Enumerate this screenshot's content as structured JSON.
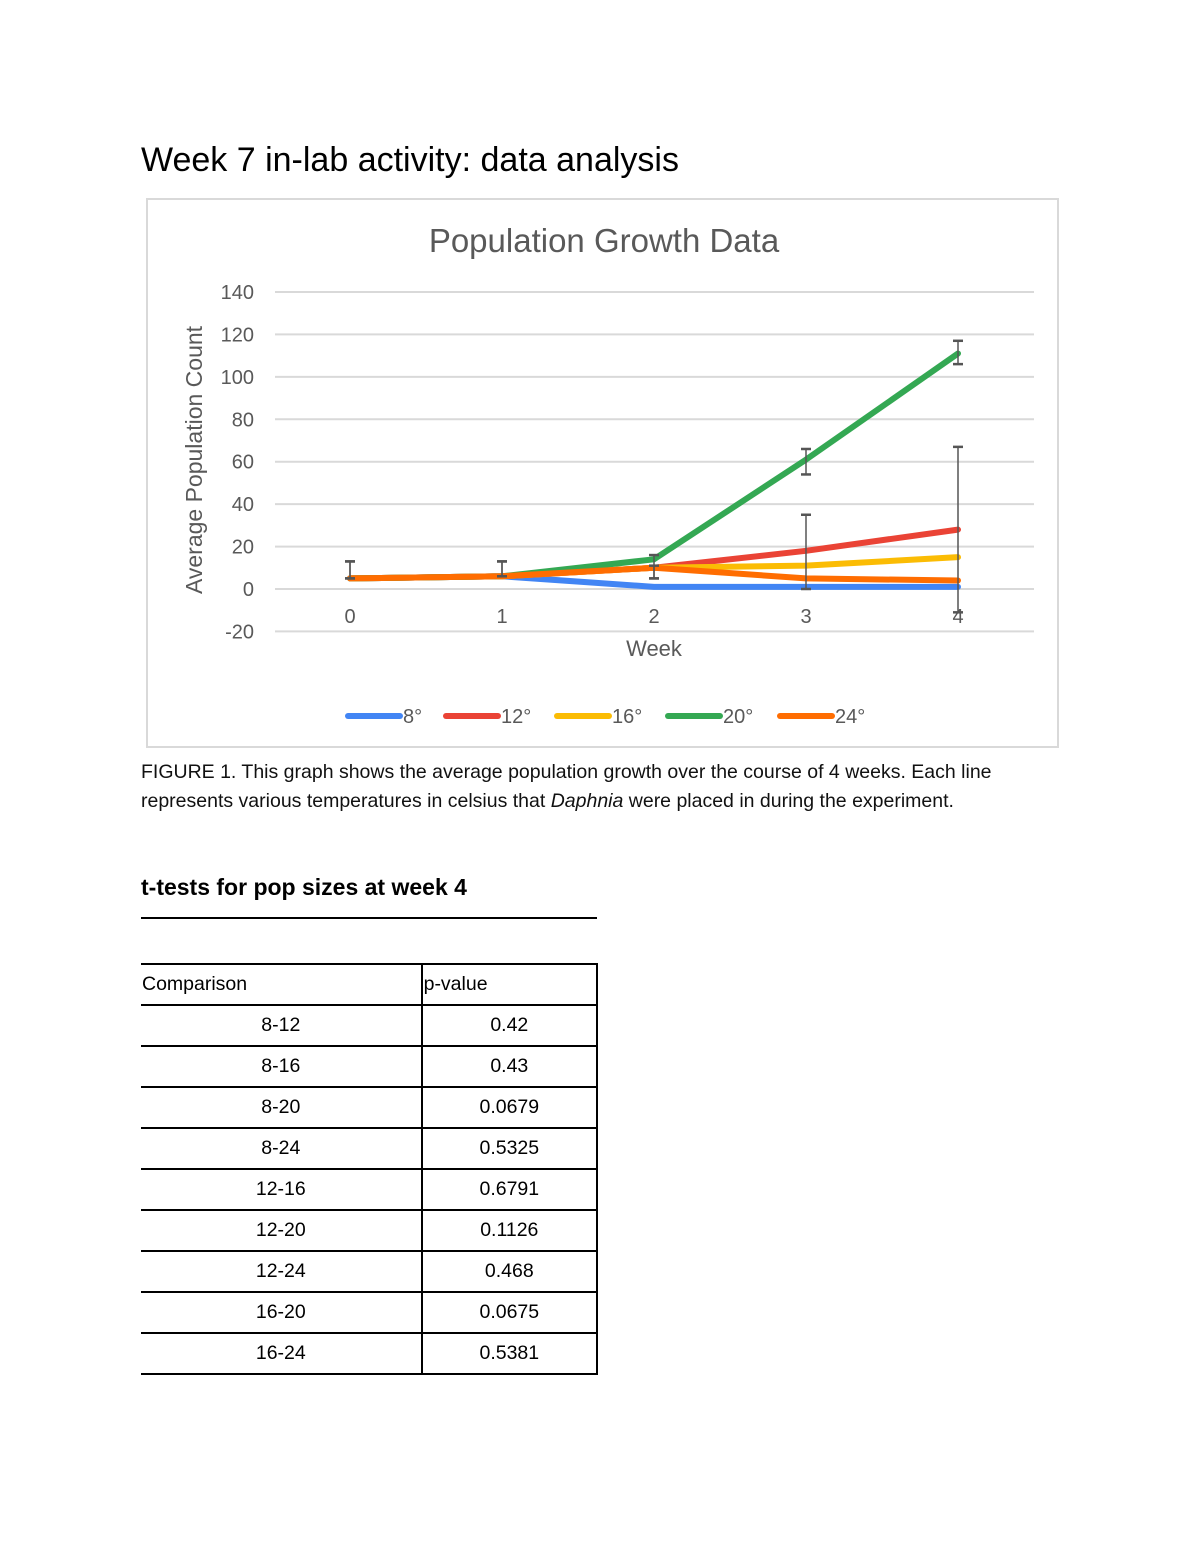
{
  "title": "Week 7 in-lab activity: data analysis",
  "chart_data": {
    "type": "line",
    "title": "Population Growth Data",
    "xlabel": "Week",
    "ylabel": "Average Population Count",
    "x": [
      0,
      1,
      2,
      3,
      4
    ],
    "ylim": [
      -20,
      140
    ],
    "yticks": [
      -20,
      0,
      20,
      40,
      60,
      80,
      100,
      120,
      140
    ],
    "grid": true,
    "legend": "bottom",
    "series": [
      {
        "name": "8°",
        "color": "#4285f4",
        "values": [
          5,
          6,
          1,
          1,
          1
        ]
      },
      {
        "name": "12°",
        "color": "#ea4335",
        "values": [
          5,
          6,
          10,
          18,
          28
        ]
      },
      {
        "name": "16°",
        "color": "#fbbc04",
        "values": [
          5,
          6,
          10,
          11,
          15
        ]
      },
      {
        "name": "20°",
        "color": "#34a853",
        "values": [
          5,
          6,
          14,
          61,
          111
        ],
        "error": [
          [
            5,
            13
          ],
          [
            6,
            13
          ],
          [
            5,
            16
          ],
          [
            54,
            66
          ],
          [
            106,
            117
          ]
        ]
      },
      {
        "name": "24°",
        "color": "#ff6d01",
        "values": [
          5,
          6,
          10,
          5,
          4
        ],
        "error": [
          [
            5,
            13
          ],
          [
            6,
            13
          ],
          [
            5,
            11
          ],
          [
            0,
            35
          ],
          [
            -11,
            67
          ]
        ]
      }
    ]
  },
  "caption": {
    "before": "FIGURE 1. This graph shows the average population growth over the course of 4 weeks. Each line represents various temperatures in celsius that ",
    "italic": "Daphnia",
    "after": " were placed in during the experiment."
  },
  "ttests": {
    "title": "t-tests for pop sizes at week 4",
    "headers": [
      "Comparison",
      "p-value"
    ],
    "rows": [
      [
        "8-12",
        "0.42"
      ],
      [
        "8-16",
        "0.43"
      ],
      [
        "8-20",
        "0.0679"
      ],
      [
        "8-24",
        "0.5325"
      ],
      [
        "12-16",
        "0.6791"
      ],
      [
        "12-20",
        "0.1126"
      ],
      [
        "12-24",
        "0.468"
      ],
      [
        "16-20",
        "0.0675"
      ],
      [
        "16-24",
        "0.5381"
      ]
    ]
  }
}
